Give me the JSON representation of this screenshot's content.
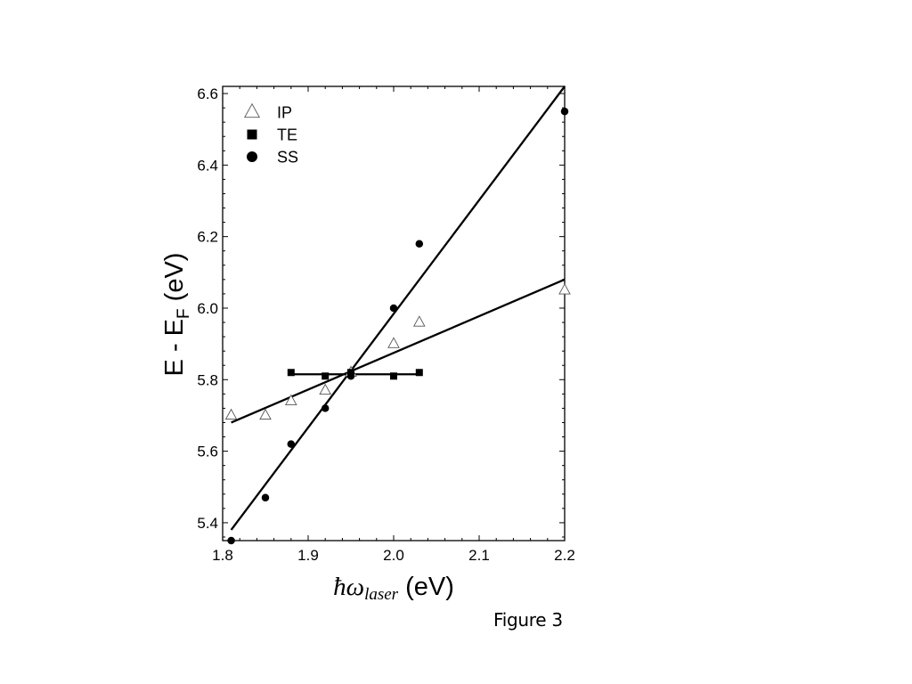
{
  "chart_data": {
    "type": "scatter",
    "xlim": [
      1.8,
      2.2
    ],
    "ylim": [
      5.35,
      6.62
    ],
    "xticks": [
      1.8,
      1.9,
      2.0,
      2.1,
      2.2
    ],
    "xtick_labels": [
      "1.8",
      "1.9",
      "2.0",
      "2.1",
      "2.2"
    ],
    "yticks": [
      5.4,
      5.6,
      5.8,
      6.0,
      6.2,
      6.4,
      6.6
    ],
    "ytick_labels": [
      "5.4",
      "5.6",
      "5.8",
      "6.0",
      "6.2",
      "6.4",
      "6.6"
    ],
    "grid": false,
    "legend_position": "top-left",
    "xlabel": {
      "symbol": "ħω",
      "subscript": "laser",
      "unit": " (eV)"
    },
    "ylabel": {
      "base": "E - E",
      "subscript": "F",
      "unit": " (eV)"
    },
    "series": [
      {
        "name": "IP",
        "marker": "open-triangle",
        "points": [
          [
            1.81,
            5.7
          ],
          [
            1.85,
            5.7
          ],
          [
            1.88,
            5.74
          ],
          [
            1.92,
            5.77
          ],
          [
            1.95,
            5.82
          ],
          [
            2.0,
            5.9
          ],
          [
            2.03,
            5.96
          ],
          [
            2.2,
            6.05
          ]
        ],
        "fit": [
          [
            1.81,
            5.68
          ],
          [
            2.2,
            6.08
          ]
        ]
      },
      {
        "name": "TE",
        "marker": "filled-square",
        "points": [
          [
            1.88,
            5.82
          ],
          [
            1.92,
            5.81
          ],
          [
            1.95,
            5.82
          ],
          [
            2.0,
            5.81
          ],
          [
            2.03,
            5.82
          ]
        ],
        "fit": [
          [
            1.88,
            5.815
          ],
          [
            2.03,
            5.815
          ]
        ]
      },
      {
        "name": "SS",
        "marker": "filled-circle",
        "points": [
          [
            1.81,
            5.35
          ],
          [
            1.85,
            5.47
          ],
          [
            1.88,
            5.62
          ],
          [
            1.92,
            5.72
          ],
          [
            1.95,
            5.81
          ],
          [
            2.0,
            6.0
          ],
          [
            2.03,
            6.18
          ],
          [
            2.2,
            6.55
          ]
        ],
        "fit": [
          [
            1.81,
            5.38
          ],
          [
            2.2,
            6.62
          ]
        ]
      }
    ]
  },
  "caption": "Figure 3"
}
